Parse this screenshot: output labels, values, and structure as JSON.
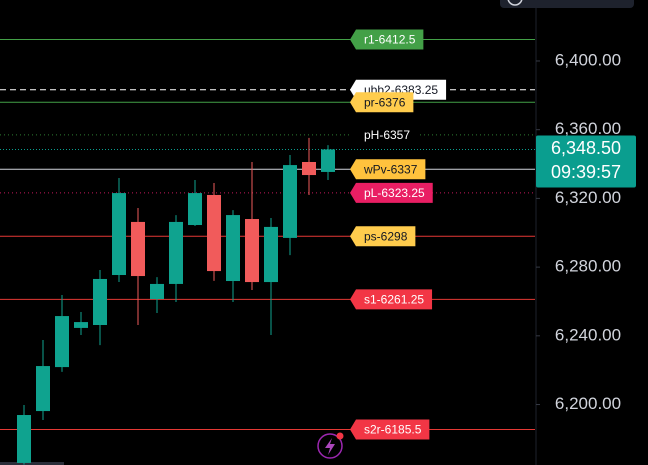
{
  "chart_data": {
    "type": "candlestick",
    "ylim": [
      6164.8,
      6435.5
    ],
    "yticks": [
      {
        "value": 6400,
        "label": "6,400.00"
      },
      {
        "value": 6360,
        "label": "6,360.00"
      },
      {
        "value": 6320,
        "label": "6,320.00"
      },
      {
        "value": 6280,
        "label": "6,280.00"
      },
      {
        "value": 6240,
        "label": "6,240.00"
      },
      {
        "value": 6200,
        "label": "6,200.00"
      }
    ],
    "up_color": "#0fa38f",
    "down_color": "#f15b5b",
    "open": [
      6166,
      6196.2,
      6221.8,
      6244.6,
      6246.3,
      6275.4,
      6306.3,
      6261.4,
      6270.2,
      6304.5,
      6322,
      6271.9,
      6308,
      6271.3,
      6297,
      6341.2,
      6335.4
    ],
    "high": [
      6199.7,
      6237.6,
      6263.8,
      6253.9,
      6278.3,
      6331.9,
      6314.4,
      6274.2,
      6310.3,
      6330.7,
      6329,
      6313.2,
      6341.2,
      6308.6,
      6345.3,
      6355.2,
      6351
    ],
    "low": [
      6165,
      6191,
      6219,
      6240.5,
      6234.6,
      6271.3,
      6246.3,
      6253.3,
      6259.7,
      6303.9,
      6272,
      6259.7,
      6266.7,
      6240.5,
      6287,
      6322,
      6330.7
    ],
    "close": [
      6193.9,
      6222.4,
      6251.5,
      6248,
      6273.1,
      6323.1,
      6274.8,
      6270.2,
      6306.3,
      6323.1,
      6277.7,
      6310.3,
      6271.3,
      6303.4,
      6339.4,
      6333.6,
      6348.5
    ],
    "levels": [
      {
        "label": "r1-6412.5",
        "value": 6412.5,
        "line_color": "#43a047",
        "line_style": "solid",
        "box_color": "#43a047",
        "text_color": "#ffffff"
      },
      {
        "label": "ubb2-6383.25",
        "value": 6383.25,
        "line_color": "#ffffff",
        "line_style": "dashed",
        "box_color": "#ffffff",
        "text_color": "#131722"
      },
      {
        "label": "pr-6376",
        "value": 6376,
        "line_color": "#43a047",
        "line_style": "solid",
        "box_color": "#ffcc4d",
        "text_color": "#131722"
      },
      {
        "label": "pH-6357",
        "value": 6357,
        "line_color": "#2e7d32",
        "line_style": "dotted",
        "box_color": "#000000",
        "text_color": "#ffffff"
      },
      {
        "label": "wPv-6337",
        "value": 6337,
        "line_color": "#d1d4dc",
        "line_style": "solid",
        "box_color": "#ffc23d",
        "text_color": "#131722"
      },
      {
        "label": "pL-6323.25",
        "value": 6323.25,
        "line_color": "#c2185b",
        "line_style": "dotted",
        "box_color": "#e91e63",
        "text_color": "#ffffff"
      },
      {
        "label": "ps-6298",
        "value": 6298,
        "line_color": "#e53935",
        "line_style": "solid",
        "box_color": "#ffcc4d",
        "text_color": "#131722"
      },
      {
        "label": "s1-6261.25",
        "value": 6261.25,
        "line_color": "#e53935",
        "line_style": "solid",
        "box_color": "#f23645",
        "text_color": "#ffffff"
      },
      {
        "label": "s2r-6185.5",
        "value": 6185.5,
        "line_color": "#e53935",
        "line_style": "solid",
        "box_color": "#f23645",
        "text_color": "#ffffff"
      }
    ],
    "last_price": {
      "value": 6348.5,
      "label": "6,348.50",
      "time": "09:39:57",
      "color": "#0a9e8f"
    }
  }
}
